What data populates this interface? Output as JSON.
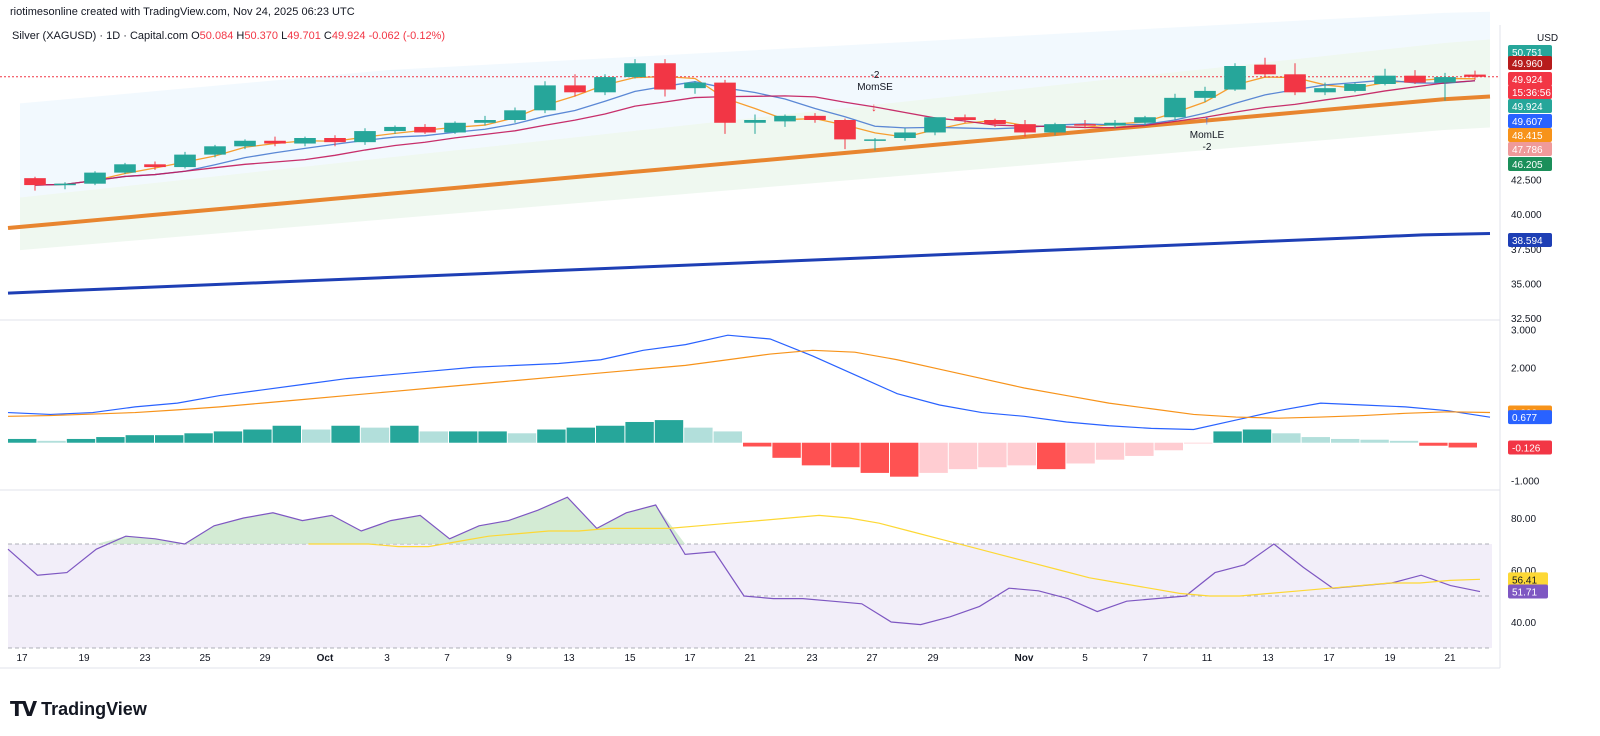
{
  "header": {
    "credit": "riotimesonline created with TradingView.com, Nov 24, 2025 06:23 UTC"
  },
  "symbol": {
    "name": "Silver (XAGUSD) · 1D · Capital.com",
    "o_label": "O",
    "o": "50.084",
    "h_label": "H",
    "h": "50.370",
    "l_label": "L",
    "l": "49.701",
    "c_label": "C",
    "c": "49.924",
    "change": "-0.062 (-0.12%)"
  },
  "currency": "USD",
  "brand": "TradingView",
  "colors": {
    "up": "#26a69a",
    "down": "#f23645",
    "ema_fast": "#f7931a",
    "ema_slow": "#e8852f",
    "sma_long": "#1e3fb5",
    "rsi": "#7e57c2",
    "macd": "#2962ff"
  },
  "chart_data": [
    {
      "type": "candlestick",
      "title": "Silver (XAGUSD) · 1D · Capital.com",
      "x_ticks": [
        "17",
        "19",
        "23",
        "25",
        "29",
        "Oct",
        "3",
        "7",
        "9",
        "13",
        "15",
        "17",
        "21",
        "23",
        "27",
        "29",
        "Nov",
        "5",
        "7",
        "11",
        "13",
        "17",
        "19",
        "21"
      ],
      "y_ticks": [
        "32.500",
        "35.000",
        "37.500",
        "40.000",
        "42.500"
      ],
      "ylim": [
        32.5,
        52
      ],
      "candles": [
        {
          "o": 42.6,
          "h": 42.7,
          "l": 41.7,
          "c": 42.1
        },
        {
          "o": 42.1,
          "h": 42.3,
          "l": 41.8,
          "c": 42.2
        },
        {
          "o": 42.2,
          "h": 43.1,
          "l": 42.1,
          "c": 43.0
        },
        {
          "o": 43.0,
          "h": 43.7,
          "l": 42.9,
          "c": 43.6
        },
        {
          "o": 43.6,
          "h": 43.8,
          "l": 43.2,
          "c": 43.4
        },
        {
          "o": 43.4,
          "h": 44.5,
          "l": 43.3,
          "c": 44.3
        },
        {
          "o": 44.3,
          "h": 45.0,
          "l": 44.1,
          "c": 44.9
        },
        {
          "o": 44.9,
          "h": 45.4,
          "l": 44.7,
          "c": 45.3
        },
        {
          "o": 45.3,
          "h": 45.6,
          "l": 44.9,
          "c": 45.1
        },
        {
          "o": 45.1,
          "h": 45.6,
          "l": 44.9,
          "c": 45.5
        },
        {
          "o": 45.5,
          "h": 45.7,
          "l": 44.9,
          "c": 45.2
        },
        {
          "o": 45.2,
          "h": 46.2,
          "l": 45.0,
          "c": 46.0
        },
        {
          "o": 46.0,
          "h": 46.4,
          "l": 45.8,
          "c": 46.3
        },
        {
          "o": 46.3,
          "h": 46.5,
          "l": 45.8,
          "c": 45.9
        },
        {
          "o": 45.9,
          "h": 46.7,
          "l": 45.8,
          "c": 46.6
        },
        {
          "o": 46.6,
          "h": 47.1,
          "l": 46.4,
          "c": 46.8
        },
        {
          "o": 46.8,
          "h": 47.7,
          "l": 46.6,
          "c": 47.5
        },
        {
          "o": 47.5,
          "h": 49.6,
          "l": 47.3,
          "c": 49.3
        },
        {
          "o": 49.3,
          "h": 50.1,
          "l": 48.5,
          "c": 48.8
        },
        {
          "o": 48.8,
          "h": 50.1,
          "l": 48.6,
          "c": 49.9
        },
        {
          "o": 49.9,
          "h": 51.2,
          "l": 49.8,
          "c": 50.9
        },
        {
          "o": 50.9,
          "h": 51.2,
          "l": 48.5,
          "c": 49.0
        },
        {
          "o": 49.1,
          "h": 49.6,
          "l": 48.7,
          "c": 49.5
        },
        {
          "o": 49.5,
          "h": 49.7,
          "l": 45.8,
          "c": 46.6
        },
        {
          "o": 46.6,
          "h": 47.2,
          "l": 45.8,
          "c": 46.8
        },
        {
          "o": 46.7,
          "h": 47.2,
          "l": 46.3,
          "c": 47.1
        },
        {
          "o": 47.1,
          "h": 47.3,
          "l": 46.6,
          "c": 46.8
        },
        {
          "o": 46.8,
          "h": 46.9,
          "l": 44.7,
          "c": 45.4
        },
        {
          "o": 45.3,
          "h": 45.5,
          "l": 44.6,
          "c": 45.4
        },
        {
          "o": 45.5,
          "h": 46.2,
          "l": 45.3,
          "c": 45.9
        },
        {
          "o": 45.9,
          "h": 47.0,
          "l": 45.7,
          "c": 47.0
        },
        {
          "o": 47.0,
          "h": 47.2,
          "l": 46.6,
          "c": 46.8
        },
        {
          "o": 46.8,
          "h": 46.9,
          "l": 46.3,
          "c": 46.5
        },
        {
          "o": 46.5,
          "h": 46.8,
          "l": 45.6,
          "c": 45.9
        },
        {
          "o": 45.9,
          "h": 46.6,
          "l": 45.7,
          "c": 46.5
        },
        {
          "o": 46.5,
          "h": 46.8,
          "l": 46.2,
          "c": 46.4
        },
        {
          "o": 46.4,
          "h": 46.8,
          "l": 46.2,
          "c": 46.6
        },
        {
          "o": 46.6,
          "h": 47.1,
          "l": 46.4,
          "c": 47.0
        },
        {
          "o": 47.0,
          "h": 48.7,
          "l": 46.8,
          "c": 48.4
        },
        {
          "o": 48.4,
          "h": 49.2,
          "l": 48.1,
          "c": 48.9
        },
        {
          "o": 49.0,
          "h": 50.9,
          "l": 48.9,
          "c": 50.7
        },
        {
          "o": 50.8,
          "h": 51.3,
          "l": 49.9,
          "c": 50.1
        },
        {
          "o": 50.1,
          "h": 50.9,
          "l": 48.6,
          "c": 48.8
        },
        {
          "o": 48.8,
          "h": 49.5,
          "l": 48.6,
          "c": 49.1
        },
        {
          "o": 48.9,
          "h": 49.5,
          "l": 48.8,
          "c": 49.4
        },
        {
          "o": 49.4,
          "h": 50.5,
          "l": 49.3,
          "c": 50.0
        },
        {
          "o": 50.0,
          "h": 50.4,
          "l": 49.4,
          "c": 49.5
        },
        {
          "o": 49.5,
          "h": 50.2,
          "l": 48.2,
          "c": 49.9
        },
        {
          "o": 50.08,
          "h": 50.37,
          "l": 49.7,
          "c": 49.92
        }
      ],
      "series": [
        {
          "name": "",
          "color": "#e8852f",
          "values": [
            39.0,
            39.3,
            39.6,
            39.9,
            40.2,
            40.5,
            40.8,
            41.1,
            41.4,
            41.7,
            42.0,
            42.3,
            42.6,
            42.9,
            43.2,
            43.5,
            43.8,
            44.1,
            44.4,
            44.7,
            45.0,
            45.3,
            45.6,
            45.9,
            46.2,
            46.5,
            46.8,
            47.1,
            47.4,
            47.7,
            48.0,
            48.3,
            48.5
          ]
        },
        {
          "name": "",
          "color": "#1e3fb5",
          "values": [
            34.3,
            34.5,
            34.7,
            34.9,
            35.1,
            35.3,
            35.5,
            35.7,
            35.9,
            36.1,
            36.3,
            36.5,
            36.7,
            36.9,
            37.1,
            37.3,
            37.5,
            37.7,
            37.9,
            38.1,
            38.3,
            38.5,
            38.6
          ]
        }
      ],
      "annotations": [
        "-2",
        "MomSE",
        "MomLE",
        "-2"
      ],
      "price_labels": [
        "50.751",
        "49.960",
        "49.924",
        "15:36:56",
        "49.924",
        "49.607",
        "48.415",
        "47.786",
        "46.205",
        "38.594"
      ]
    },
    {
      "type": "line",
      "title": "",
      "y_ticks": [
        "3.000",
        "2.000",
        "0.802",
        "0.677",
        "-0.126",
        "-1.000"
      ],
      "ylim": [
        -1.2,
        3.2
      ],
      "macd": [
        0.8,
        0.75,
        0.8,
        0.95,
        1.05,
        1.25,
        1.4,
        1.55,
        1.7,
        1.8,
        1.9,
        2.0,
        2.05,
        2.1,
        2.2,
        2.45,
        2.6,
        2.85,
        2.75,
        2.3,
        1.8,
        1.3,
        1.0,
        0.8,
        0.7,
        0.55,
        0.45,
        0.38,
        0.35,
        0.6,
        0.85,
        1.05,
        1.0,
        0.95,
        0.85,
        0.677
      ],
      "signal": [
        0.7,
        0.72,
        0.76,
        0.8,
        0.87,
        0.95,
        1.05,
        1.15,
        1.25,
        1.35,
        1.45,
        1.55,
        1.65,
        1.75,
        1.85,
        1.95,
        2.05,
        2.2,
        2.35,
        2.45,
        2.4,
        2.2,
        1.95,
        1.7,
        1.45,
        1.25,
        1.05,
        0.9,
        0.75,
        0.68,
        0.65,
        0.68,
        0.72,
        0.78,
        0.82,
        0.802
      ],
      "histogram": [
        0.1,
        0.05,
        0.1,
        0.15,
        0.2,
        0.2,
        0.25,
        0.3,
        0.35,
        0.45,
        0.35,
        0.45,
        0.4,
        0.45,
        0.3,
        0.3,
        0.3,
        0.25,
        0.35,
        0.4,
        0.45,
        0.55,
        0.6,
        0.4,
        0.3,
        -0.1,
        -0.4,
        -0.6,
        -0.65,
        -0.8,
        -0.9,
        -0.8,
        -0.7,
        -0.65,
        -0.6,
        -0.7,
        -0.55,
        -0.45,
        -0.35,
        -0.2,
        -0.02,
        0.3,
        0.35,
        0.25,
        0.15,
        0.1,
        0.08,
        0.05,
        -0.08,
        -0.126
      ]
    },
    {
      "type": "line",
      "title": "",
      "y_ticks": [
        "80.00",
        "60.00",
        "56.41",
        "51.71",
        "40.00"
      ],
      "ylim": [
        30,
        90
      ],
      "rsi": [
        68,
        58,
        59,
        68,
        73,
        72,
        70,
        77,
        80,
        82,
        79,
        81,
        75,
        79,
        81,
        72,
        77,
        79,
        83,
        88,
        76,
        82,
        85,
        66,
        67,
        50,
        49,
        49,
        48,
        47,
        40,
        39,
        42,
        46,
        53,
        52,
        49,
        44,
        48,
        49,
        50,
        59,
        62,
        70,
        61,
        53,
        54,
        55,
        58,
        54,
        51.7
      ],
      "rsi_ma": [
        70,
        70,
        70,
        69,
        69,
        71,
        73,
        74,
        75,
        75,
        76,
        76,
        76,
        77,
        78,
        79,
        80,
        81,
        80,
        78,
        75,
        72,
        69,
        66,
        63,
        60,
        57,
        55,
        53,
        51,
        50,
        50,
        51,
        52,
        53,
        54,
        55,
        55,
        56,
        56.41
      ],
      "band": [
        30,
        70
      ]
    }
  ]
}
